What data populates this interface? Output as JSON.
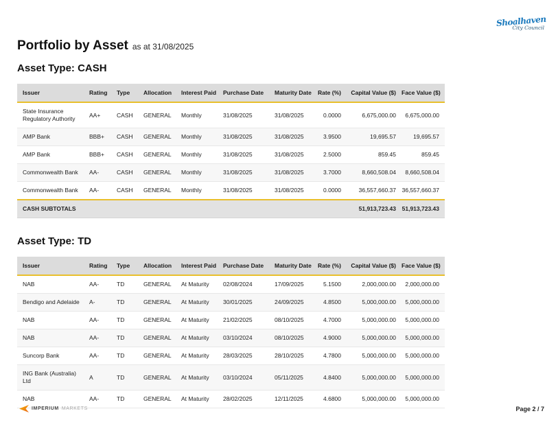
{
  "header": {
    "title": "Portfolio by Asset",
    "subtitle": "as at 31/08/2025"
  },
  "logo": {
    "name": "Shoalhaven",
    "subtitle": "City Council"
  },
  "columns": [
    "Issuer",
    "Rating",
    "Type",
    "Allocation",
    "Interest Paid",
    "Purchase Date",
    "Maturity Date",
    "Rate (%)",
    "Capital Value ($)",
    "Face Value ($)"
  ],
  "sections": [
    {
      "heading": "Asset Type: CASH",
      "rows": [
        [
          "State Insurance Regulatory Authority",
          "AA+",
          "CASH",
          "GENERAL",
          "Monthly",
          "31/08/2025",
          "31/08/2025",
          "0.0000",
          "6,675,000.00",
          "6,675,000.00"
        ],
        [
          "AMP Bank",
          "BBB+",
          "CASH",
          "GENERAL",
          "Monthly",
          "31/08/2025",
          "31/08/2025",
          "3.9500",
          "19,695.57",
          "19,695.57"
        ],
        [
          "AMP Bank",
          "BBB+",
          "CASH",
          "GENERAL",
          "Monthly",
          "31/08/2025",
          "31/08/2025",
          "2.5000",
          "859.45",
          "859.45"
        ],
        [
          "Commonwealth Bank",
          "AA-",
          "CASH",
          "GENERAL",
          "Monthly",
          "31/08/2025",
          "31/08/2025",
          "3.7000",
          "8,660,508.04",
          "8,660,508.04"
        ],
        [
          "Commonwealth Bank",
          "AA-",
          "CASH",
          "GENERAL",
          "Monthly",
          "31/08/2025",
          "31/08/2025",
          "0.0000",
          "36,557,660.37",
          "36,557,660.37"
        ]
      ],
      "subtotal": {
        "label": "CASH SUBTOTALS",
        "capital_value": "51,913,723.43",
        "face_value": "51,913,723.43"
      }
    },
    {
      "heading": "Asset Type: TD",
      "rows": [
        [
          "NAB",
          "AA-",
          "TD",
          "GENERAL",
          "At Maturity",
          "02/08/2024",
          "17/09/2025",
          "5.1500",
          "2,000,000.00",
          "2,000,000.00"
        ],
        [
          "Bendigo and Adelaide",
          "A-",
          "TD",
          "GENERAL",
          "At Maturity",
          "30/01/2025",
          "24/09/2025",
          "4.8500",
          "5,000,000.00",
          "5,000,000.00"
        ],
        [
          "NAB",
          "AA-",
          "TD",
          "GENERAL",
          "At Maturity",
          "21/02/2025",
          "08/10/2025",
          "4.7000",
          "5,000,000.00",
          "5,000,000.00"
        ],
        [
          "NAB",
          "AA-",
          "TD",
          "GENERAL",
          "At Maturity",
          "03/10/2024",
          "08/10/2025",
          "4.9000",
          "5,000,000.00",
          "5,000,000.00"
        ],
        [
          "Suncorp Bank",
          "AA-",
          "TD",
          "GENERAL",
          "At Maturity",
          "28/03/2025",
          "28/10/2025",
          "4.7800",
          "5,000,000.00",
          "5,000,000.00"
        ],
        [
          "ING Bank (Australia) Ltd",
          "A",
          "TD",
          "GENERAL",
          "At Maturity",
          "03/10/2024",
          "05/11/2025",
          "4.8400",
          "5,000,000.00",
          "5,000,000.00"
        ],
        [
          "NAB",
          "AA-",
          "TD",
          "GENERAL",
          "At Maturity",
          "28/02/2025",
          "12/11/2025",
          "4.6800",
          "5,000,000.00",
          "5,000,000.00"
        ]
      ],
      "subtotal": null
    }
  ],
  "footer": {
    "brand_primary": "IMPERIUM",
    "brand_secondary": "MARKETS",
    "page_indicator": "Page 2 / 7"
  },
  "colors": {
    "accent_gold": "#e9bf2b",
    "header_row_bg": "#dcdcdc",
    "alt_row_bg": "#f7f7f7",
    "subtotal_row_bg": "#e2e2e2",
    "council_blue": "#1a79bd",
    "imperium_orange": "#f0941f"
  }
}
